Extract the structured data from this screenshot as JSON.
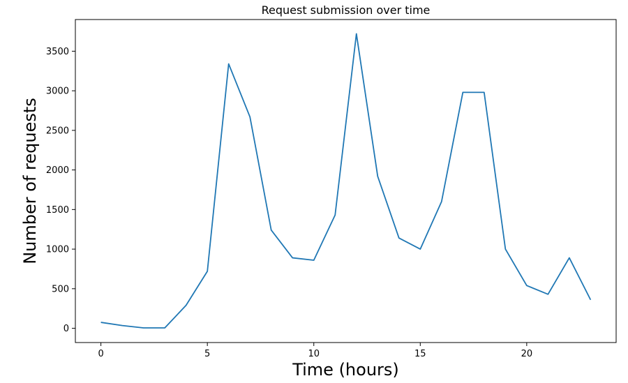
{
  "chart_data": {
    "type": "line",
    "title": "Request submission over time",
    "xlabel": "Time (hours)",
    "ylabel": "Number of requests",
    "xlim": [
      -1.2,
      24.2
    ],
    "ylim": [
      -180,
      3900
    ],
    "x_ticks": [
      0,
      5,
      10,
      15,
      20
    ],
    "y_ticks": [
      0,
      500,
      1000,
      1500,
      2000,
      2500,
      3000,
      3500
    ],
    "grid": false,
    "legend": "none",
    "series": [
      {
        "color": "#1f77b4",
        "x": [
          0,
          1,
          2,
          3,
          4,
          5,
          6,
          7,
          8,
          9,
          10,
          11,
          12,
          13,
          14,
          15,
          16,
          17,
          18,
          19,
          20,
          21,
          22,
          23
        ],
        "y": [
          75,
          35,
          5,
          5,
          290,
          720,
          3340,
          2670,
          1240,
          890,
          860,
          1430,
          3720,
          1920,
          1140,
          1000,
          1600,
          2980,
          2980,
          1000,
          540,
          430,
          890,
          360
        ]
      }
    ]
  }
}
